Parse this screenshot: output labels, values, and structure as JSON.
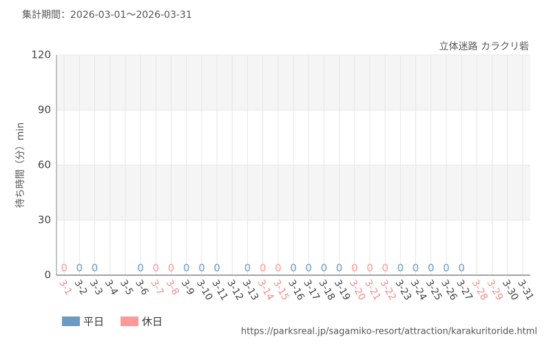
{
  "chart_data": {
    "type": "bar",
    "header": "集計期間：2026-03-01～2026-03-31",
    "title": "立体迷路 カラクリ砦",
    "y_label": "待ち時間（分）min",
    "source": "https://parksreal.jp/sagamiko-resort/attraction/karakuritoride.html",
    "categories": [
      "3-1",
      "3-2",
      "3-3",
      "3-4",
      "3-5",
      "3-6",
      "3-7",
      "3-8",
      "3-9",
      "3-10",
      "3-11",
      "3-12",
      "3-13",
      "3-14",
      "3-15",
      "3-16",
      "3-17",
      "3-18",
      "3-19",
      "3-20",
      "3-21",
      "3-22",
      "3-23",
      "3-24",
      "3-25",
      "3-26",
      "3-27",
      "3-28",
      "3-29",
      "3-30",
      "3-31"
    ],
    "category_colors": [
      "#f08c8c",
      "#444",
      "#444",
      "#444",
      "#444",
      "#444",
      "#f08c8c",
      "#f08c8c",
      "#444",
      "#444",
      "#444",
      "#444",
      "#444",
      "#f08c8c",
      "#f08c8c",
      "#444",
      "#444",
      "#444",
      "#444",
      "#f08c8c",
      "#f08c8c",
      "#f08c8c",
      "#444",
      "#444",
      "#444",
      "#444",
      "#444",
      "#f08c8c",
      "#f08c8c",
      "#444",
      "#444"
    ],
    "series": [
      {
        "name": "平日",
        "color": "#6b9ac4",
        "values": [
          null,
          0,
          0,
          null,
          null,
          0,
          null,
          null,
          0,
          0,
          0,
          null,
          0,
          null,
          null,
          0,
          0,
          0,
          0,
          null,
          null,
          null,
          0,
          0,
          0,
          0,
          0,
          null,
          null,
          null,
          null
        ]
      },
      {
        "name": "休日",
        "color": "#ff9999",
        "values": [
          0,
          null,
          null,
          null,
          null,
          null,
          0,
          0,
          null,
          null,
          null,
          null,
          null,
          0,
          0,
          null,
          null,
          null,
          null,
          0,
          0,
          0,
          null,
          null,
          null,
          null,
          null,
          null,
          null,
          null,
          null
        ]
      }
    ],
    "ylim": [
      0,
      120
    ],
    "yticks": [
      0,
      30,
      60,
      90,
      120
    ],
    "grid": true
  }
}
